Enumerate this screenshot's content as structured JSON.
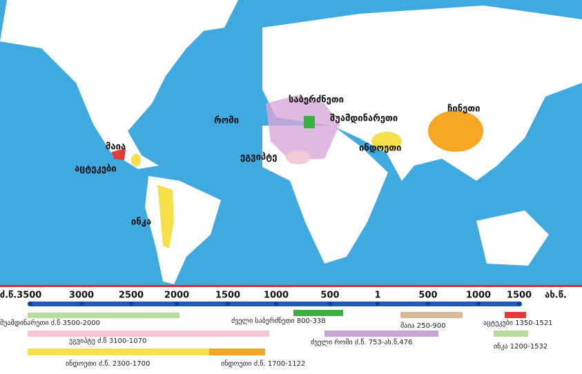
{
  "map": {
    "labels": [
      "საბერძნეთი",
      "რომი",
      "შუამდინარეთი",
      "ჩინეთი",
      "მაია",
      "ეგვიპტე",
      "ინდოეთი",
      "აცტეკები",
      "ინკა"
    ]
  },
  "timeline": {
    "ticks": [
      "ძ.წ.3500",
      "3000",
      "2500",
      "2000",
      "1500",
      "1000",
      "500",
      "1",
      "500",
      "1000",
      "1500",
      "ახ.წ."
    ],
    "periods": [
      "შუამდინარეთი ძ.წ 3500-2000",
      "ძველი საბერძნეთი 800-338",
      "მაია 250-900",
      "აცტეკები 1350-1521",
      "ეგვიპტე ძ.წ 3100-1070",
      "ძველი რომი ძ.წ. 753-ახ.წ.476",
      "ინკა 1200-1532",
      "ინდოეთი ძ.წ. 2300-1700",
      "ინდოეთი ძ.წ. 1700-1122"
    ]
  }
}
